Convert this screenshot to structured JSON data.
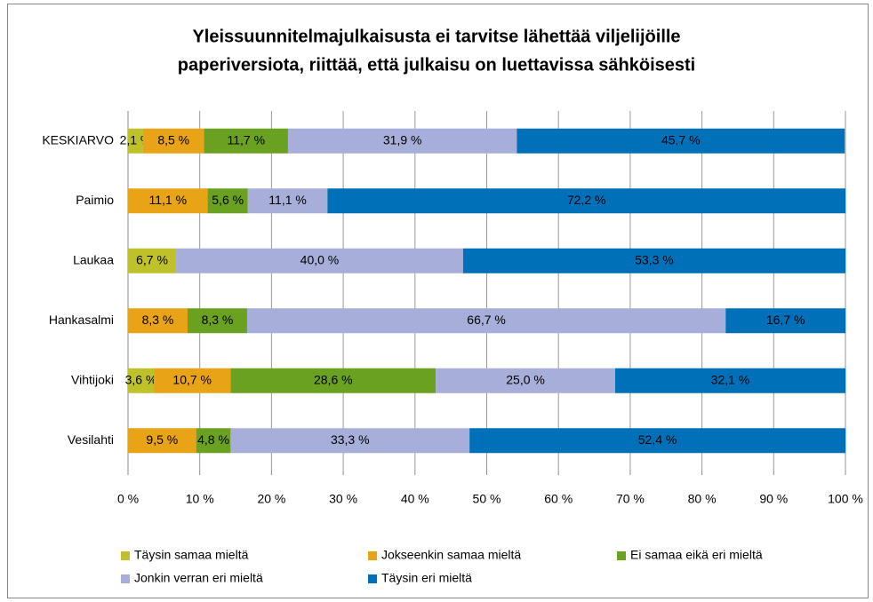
{
  "chart_data": {
    "type": "stacked-barh",
    "title": [
      "Yleissuunnitelmajulkaisusta ei tarvitse lähettää viljelijöille",
      "paperiversiota, riittää, että julkaisu on luettavissa sähköisesti"
    ],
    "categories": [
      "KESKIARVO",
      "Paimio",
      "Laukaa",
      "Hankasalmi",
      "Vihtijoki",
      "Vesilahti"
    ],
    "series": [
      {
        "name": "Täysin samaa mieltä",
        "color": "#bfc12a",
        "values": [
          2.1,
          0,
          6.7,
          0,
          3.6,
          0
        ],
        "value_labels": [
          "2,1 %",
          null,
          "6,7 %",
          null,
          "3,6 %",
          null
        ]
      },
      {
        "name": "Jokseenkin samaa mieltä",
        "color": "#e8a317",
        "values": [
          8.5,
          11.1,
          0,
          8.3,
          10.7,
          9.5
        ],
        "value_labels": [
          "8,5 %",
          "11,1 %",
          null,
          "8,3 %",
          "10,7 %",
          "9,5 %"
        ]
      },
      {
        "name": "Ei samaa eikä eri mieltä",
        "color": "#6aa121",
        "values": [
          11.7,
          5.6,
          0,
          8.3,
          28.6,
          4.8
        ],
        "value_labels": [
          "11,7 %",
          "5,6 %",
          null,
          "8,3 %",
          "28,6 %",
          "4,8 %"
        ]
      },
      {
        "name": "Jonkin verran eri mieltä",
        "color": "#a7aed9",
        "values": [
          31.9,
          11.1,
          40.0,
          66.7,
          25.0,
          33.3
        ],
        "value_labels": [
          "31,9 %",
          "11,1 %",
          "40,0 %",
          "66,7 %",
          "25,0 %",
          "33,3 %"
        ]
      },
      {
        "name": "Täysin eri mieltä",
        "color": "#0070b8",
        "values": [
          45.7,
          72.2,
          53.3,
          16.7,
          32.1,
          52.4
        ],
        "value_labels": [
          "45,7 %",
          "72,2 %",
          "53,3 %",
          "16,7 %",
          "32,1 %",
          "52,4 %"
        ]
      }
    ],
    "xlim": [
      0,
      100
    ],
    "xticks": [
      {
        "value": 0,
        "label": "0 %"
      },
      {
        "value": 10,
        "label": "10 %"
      },
      {
        "value": 20,
        "label": "20 %"
      },
      {
        "value": 30,
        "label": "30 %"
      },
      {
        "value": 40,
        "label": "40 %"
      },
      {
        "value": 50,
        "label": "50 %"
      },
      {
        "value": 60,
        "label": "60 %"
      },
      {
        "value": 70,
        "label": "70 %"
      },
      {
        "value": 80,
        "label": "80 %"
      },
      {
        "value": 90,
        "label": "90 %"
      },
      {
        "value": 100,
        "label": "100 %"
      }
    ],
    "grid": true,
    "legend": "bottom"
  }
}
